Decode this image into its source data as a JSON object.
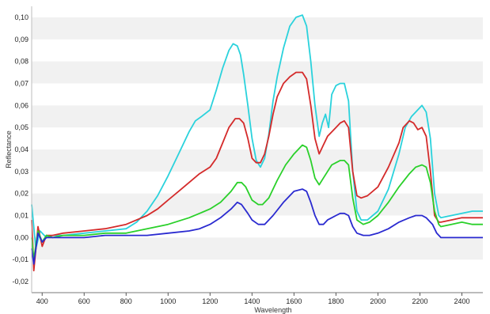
{
  "chart_data": {
    "type": "line",
    "xlabel": "Wavelength",
    "ylabel": "Reflectance",
    "xlim": [
      350,
      2500
    ],
    "ylim": [
      -0.025,
      0.105
    ],
    "x_ticks": [
      400,
      600,
      800,
      1000,
      1200,
      1400,
      1600,
      1800,
      2000,
      2200,
      2400
    ],
    "y_ticks": [
      -0.02,
      -0.01,
      0.0,
      0.01,
      0.02,
      0.03,
      0.04,
      0.05,
      0.06,
      0.07,
      0.08,
      0.09,
      0.1
    ],
    "y_tick_labels": [
      "-0,02",
      "-0,01",
      "0,00",
      "0,01",
      "0,02",
      "0,03",
      "0,04",
      "0,05",
      "0,06",
      "0,07",
      "0,08",
      "0,09",
      "0,10"
    ],
    "grid": "horizontal alternating bands",
    "legend": "none",
    "series": [
      {
        "color": "#2ad2dc",
        "x": [
          350,
          370,
          390,
          420,
          450,
          500,
          600,
          700,
          800,
          850,
          900,
          950,
          1000,
          1050,
          1100,
          1130,
          1160,
          1200,
          1230,
          1260,
          1290,
          1310,
          1330,
          1345,
          1360,
          1380,
          1400,
          1420,
          1440,
          1460,
          1480,
          1500,
          1520,
          1550,
          1580,
          1610,
          1640,
          1660,
          1680,
          1700,
          1720,
          1735,
          1750,
          1765,
          1780,
          1800,
          1820,
          1840,
          1860,
          1880,
          1900,
          1920,
          1950,
          2000,
          2050,
          2100,
          2130,
          2160,
          2190,
          2210,
          2230,
          2250,
          2270,
          2290,
          2300,
          2350,
          2400,
          2450,
          2500
        ],
        "y": [
          0.015,
          -0.005,
          0.003,
          0.0,
          0.001,
          0.001,
          0.002,
          0.003,
          0.004,
          0.007,
          0.012,
          0.019,
          0.028,
          0.038,
          0.048,
          0.053,
          0.055,
          0.058,
          0.067,
          0.077,
          0.085,
          0.088,
          0.087,
          0.083,
          0.074,
          0.06,
          0.045,
          0.035,
          0.032,
          0.036,
          0.047,
          0.062,
          0.073,
          0.086,
          0.096,
          0.1,
          0.101,
          0.096,
          0.08,
          0.06,
          0.046,
          0.052,
          0.056,
          0.05,
          0.065,
          0.069,
          0.07,
          0.07,
          0.062,
          0.03,
          0.012,
          0.008,
          0.008,
          0.012,
          0.022,
          0.038,
          0.05,
          0.055,
          0.058,
          0.06,
          0.057,
          0.045,
          0.02,
          0.01,
          0.009,
          0.01,
          0.011,
          0.012,
          0.012
        ]
      },
      {
        "color": "#d42a2a",
        "x": [
          350,
          360,
          380,
          400,
          420,
          450,
          500,
          600,
          700,
          800,
          850,
          900,
          950,
          1000,
          1050,
          1100,
          1150,
          1200,
          1230,
          1260,
          1290,
          1320,
          1340,
          1360,
          1380,
          1400,
          1420,
          1440,
          1460,
          1480,
          1500,
          1520,
          1550,
          1580,
          1610,
          1640,
          1660,
          1680,
          1700,
          1720,
          1740,
          1760,
          1780,
          1800,
          1820,
          1840,
          1860,
          1880,
          1900,
          1920,
          1950,
          2000,
          2050,
          2100,
          2120,
          2150,
          2170,
          2190,
          2210,
          2230,
          2250,
          2270,
          2290,
          2300,
          2350,
          2400,
          2450,
          2500
        ],
        "y": [
          0.008,
          -0.015,
          0.005,
          -0.004,
          0.001,
          0.001,
          0.002,
          0.003,
          0.004,
          0.006,
          0.008,
          0.01,
          0.013,
          0.017,
          0.021,
          0.025,
          0.029,
          0.032,
          0.036,
          0.043,
          0.05,
          0.054,
          0.054,
          0.052,
          0.045,
          0.036,
          0.034,
          0.034,
          0.038,
          0.046,
          0.056,
          0.064,
          0.07,
          0.073,
          0.075,
          0.075,
          0.072,
          0.06,
          0.045,
          0.038,
          0.042,
          0.046,
          0.048,
          0.05,
          0.052,
          0.053,
          0.05,
          0.03,
          0.019,
          0.018,
          0.019,
          0.023,
          0.032,
          0.043,
          0.05,
          0.053,
          0.052,
          0.049,
          0.05,
          0.046,
          0.03,
          0.01,
          0.007,
          0.007,
          0.008,
          0.009,
          0.009,
          0.009
        ]
      },
      {
        "color": "#2ad02a",
        "x": [
          350,
          360,
          380,
          400,
          420,
          450,
          500,
          600,
          700,
          800,
          900,
          1000,
          1100,
          1150,
          1200,
          1250,
          1300,
          1330,
          1350,
          1370,
          1400,
          1430,
          1450,
          1480,
          1520,
          1560,
          1600,
          1640,
          1660,
          1680,
          1700,
          1720,
          1740,
          1760,
          1780,
          1800,
          1820,
          1840,
          1860,
          1880,
          1900,
          1930,
          1960,
          2000,
          2050,
          2100,
          2150,
          2180,
          2210,
          2230,
          2250,
          2270,
          2290,
          2300,
          2350,
          2400,
          2450,
          2500
        ],
        "y": [
          0.0,
          -0.01,
          0.003,
          -0.002,
          0.001,
          0.0,
          0.001,
          0.001,
          0.002,
          0.002,
          0.004,
          0.006,
          0.009,
          0.011,
          0.013,
          0.016,
          0.021,
          0.025,
          0.025,
          0.023,
          0.017,
          0.015,
          0.015,
          0.018,
          0.026,
          0.033,
          0.038,
          0.042,
          0.041,
          0.035,
          0.027,
          0.024,
          0.027,
          0.03,
          0.033,
          0.034,
          0.035,
          0.035,
          0.033,
          0.018,
          0.008,
          0.006,
          0.007,
          0.01,
          0.016,
          0.023,
          0.029,
          0.032,
          0.033,
          0.032,
          0.025,
          0.012,
          0.006,
          0.005,
          0.006,
          0.007,
          0.006,
          0.006
        ]
      },
      {
        "color": "#2a2ad0",
        "x": [
          350,
          360,
          380,
          400,
          420,
          450,
          500,
          600,
          700,
          800,
          900,
          1000,
          1100,
          1150,
          1200,
          1250,
          1300,
          1330,
          1350,
          1380,
          1400,
          1430,
          1460,
          1500,
          1550,
          1600,
          1640,
          1660,
          1680,
          1700,
          1720,
          1740,
          1760,
          1780,
          1800,
          1820,
          1840,
          1860,
          1880,
          1900,
          1930,
          1960,
          2000,
          2050,
          2100,
          2150,
          2180,
          2210,
          2230,
          2260,
          2280,
          2300,
          2350,
          2400,
          2450,
          2500
        ],
        "y": [
          -0.005,
          -0.012,
          0.002,
          -0.002,
          0.0,
          0.0,
          0.0,
          0.0,
          0.001,
          0.001,
          0.001,
          0.002,
          0.003,
          0.004,
          0.006,
          0.009,
          0.013,
          0.016,
          0.015,
          0.011,
          0.008,
          0.006,
          0.006,
          0.01,
          0.016,
          0.021,
          0.022,
          0.021,
          0.016,
          0.01,
          0.006,
          0.006,
          0.008,
          0.009,
          0.01,
          0.011,
          0.011,
          0.01,
          0.005,
          0.002,
          0.001,
          0.001,
          0.002,
          0.004,
          0.007,
          0.009,
          0.01,
          0.01,
          0.009,
          0.006,
          0.002,
          0.0,
          0.0,
          0.0,
          0.0,
          0.0
        ]
      }
    ]
  }
}
